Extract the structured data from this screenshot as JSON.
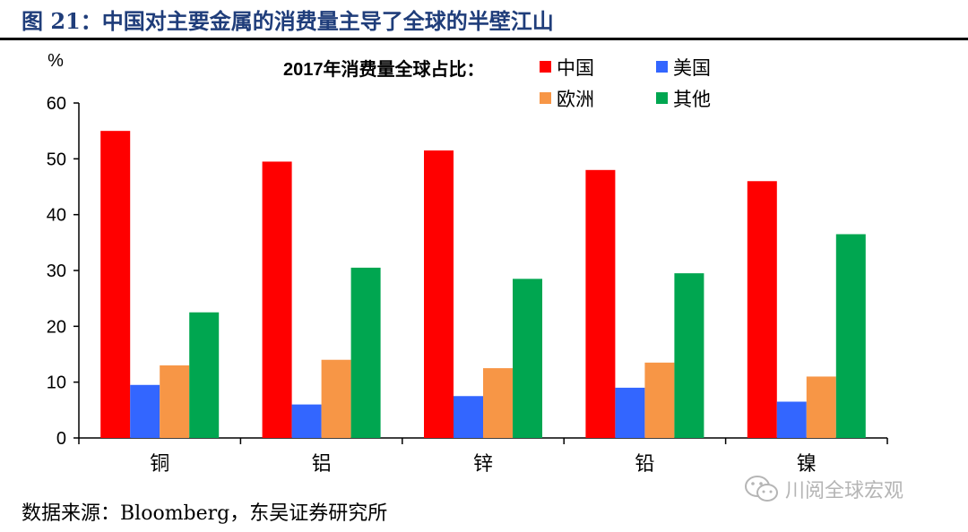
{
  "figure_title": "图 21：中国对主要金属的消费量主导了全球的半壁江山",
  "source_text": "数据来源：Bloomberg，东吴证券研究所",
  "watermark_text": "川阅全球宏观",
  "chart_data": {
    "type": "bar",
    "title": "2017年消费量全球占比：",
    "ylabel": "%",
    "xlabel": "",
    "ylim": [
      0,
      60
    ],
    "yticks": [
      0,
      10,
      20,
      30,
      40,
      50,
      60
    ],
    "categories": [
      "铜",
      "铝",
      "锌",
      "铅",
      "镍"
    ],
    "series": [
      {
        "name": "中国",
        "color": "#ff0000",
        "values": [
          55,
          49.5,
          51.5,
          48,
          46
        ]
      },
      {
        "name": "美国",
        "color": "#3366ff",
        "values": [
          9.5,
          6,
          7.5,
          9,
          6.5
        ]
      },
      {
        "name": "欧洲",
        "color": "#f79646",
        "values": [
          13,
          14,
          12.5,
          13.5,
          11
        ]
      },
      {
        "name": "其他",
        "color": "#00a650",
        "values": [
          22.5,
          30.5,
          28.5,
          29.5,
          36.5
        ]
      }
    ],
    "legend_placement": "top-right",
    "grid": false
  }
}
